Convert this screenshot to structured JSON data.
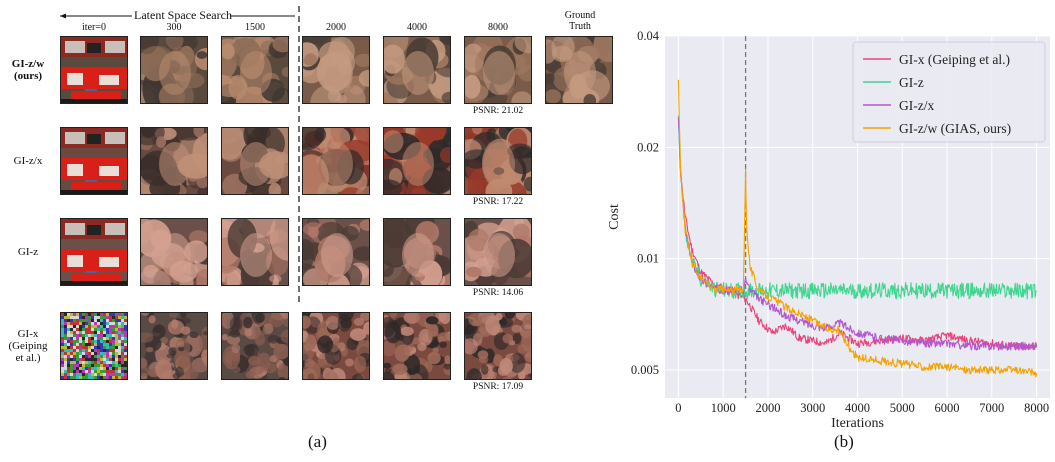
{
  "panel_a": {
    "caption": "(a)",
    "search_label": "Latent Space Search",
    "iter_headers": [
      "iter=0",
      "300",
      "1500",
      "2000",
      "4000",
      "8000"
    ],
    "ground_truth_label": "Ground\nTruth",
    "rows": [
      {
        "label": "GI-z/w\n(ours)",
        "bold": true,
        "psnr": "PSNR: 21.02",
        "style": "ours"
      },
      {
        "label": "GI-z/x",
        "bold": false,
        "psnr": "PSNR: 17.22",
        "style": "zx"
      },
      {
        "label": "GI-z",
        "bold": false,
        "psnr": "PSNR: 14.06",
        "style": "z"
      },
      {
        "label": "GI-x\n(Geiping\net al.)",
        "bold": false,
        "psnr": "PSNR: 17.09",
        "style": "x"
      }
    ]
  },
  "chart_data": {
    "type": "line",
    "caption": "(b)",
    "title": "",
    "xlabel": "Iterations",
    "ylabel": "Cost",
    "xlim": [
      -300,
      8300
    ],
    "ylim": [
      0.0042,
      0.04
    ],
    "yscale": "log",
    "xticks": [
      0,
      1000,
      2000,
      3000,
      4000,
      5000,
      6000,
      7000,
      8000
    ],
    "yticks": [
      0.005,
      0.01,
      0.02,
      0.04
    ],
    "ytick_labels": [
      "0.005",
      "0.01",
      "0.02",
      "0.04"
    ],
    "vline_x": 1500,
    "grid": true,
    "legend_position": "top-right",
    "series": [
      {
        "name": "GI-x (Geiping et al.)",
        "color": "#e8457a",
        "x": [
          0,
          50,
          150,
          300,
          500,
          800,
          1100,
          1500,
          1800,
          2100,
          2400,
          2700,
          3000,
          3300,
          3600,
          4000,
          4500,
          5000,
          5500,
          6000,
          6500,
          7000,
          7500,
          8000
        ],
        "y": [
          0.024,
          0.017,
          0.013,
          0.0106,
          0.0092,
          0.0085,
          0.0082,
          0.0078,
          0.0068,
          0.0063,
          0.0066,
          0.0061,
          0.006,
          0.0059,
          0.0063,
          0.0059,
          0.006,
          0.0061,
          0.006,
          0.0062,
          0.006,
          0.0059,
          0.0058,
          0.0058
        ]
      },
      {
        "name": "GI-z",
        "color": "#3fd68f",
        "x": [
          0,
          50,
          150,
          300,
          500,
          800,
          1100,
          1500,
          2000,
          3000,
          4000,
          5000,
          6000,
          7000,
          8000
        ],
        "y": [
          0.024,
          0.017,
          0.012,
          0.0098,
          0.0088,
          0.0083,
          0.0082,
          0.0082,
          0.0082,
          0.0082,
          0.0082,
          0.0082,
          0.0082,
          0.0082,
          0.0082
        ]
      },
      {
        "name": "GI-z/x",
        "color": "#b356d0",
        "x": [
          0,
          50,
          150,
          300,
          500,
          800,
          1100,
          1450,
          1500,
          1600,
          1800,
          2100,
          2400,
          2700,
          3000,
          3300,
          3600,
          4000,
          4500,
          5000,
          5500,
          6000,
          6500,
          7000,
          7500,
          8000
        ],
        "y": [
          0.024,
          0.017,
          0.012,
          0.0098,
          0.0088,
          0.0083,
          0.0082,
          0.0082,
          0.0088,
          0.0082,
          0.0078,
          0.0074,
          0.007,
          0.0068,
          0.0066,
          0.0065,
          0.0067,
          0.0063,
          0.0061,
          0.006,
          0.0059,
          0.0059,
          0.0058,
          0.0058,
          0.0058,
          0.0058
        ]
      },
      {
        "name": "GI-z/w (GIAS, ours)",
        "color": "#f5a300",
        "x": [
          0,
          50,
          150,
          300,
          500,
          800,
          1100,
          1450,
          1500,
          1520,
          1600,
          1800,
          2100,
          2400,
          2700,
          3000,
          3300,
          3600,
          3800,
          4000,
          4500,
          5000,
          5500,
          6000,
          6500,
          7000,
          7500,
          8000
        ],
        "y": [
          0.03,
          0.017,
          0.012,
          0.0098,
          0.0088,
          0.0083,
          0.0082,
          0.0082,
          0.0175,
          0.0125,
          0.0095,
          0.0082,
          0.0078,
          0.0074,
          0.0071,
          0.0068,
          0.0065,
          0.0064,
          0.0058,
          0.0054,
          0.0053,
          0.0052,
          0.0051,
          0.0051,
          0.005,
          0.005,
          0.005,
          0.0049
        ]
      }
    ]
  }
}
